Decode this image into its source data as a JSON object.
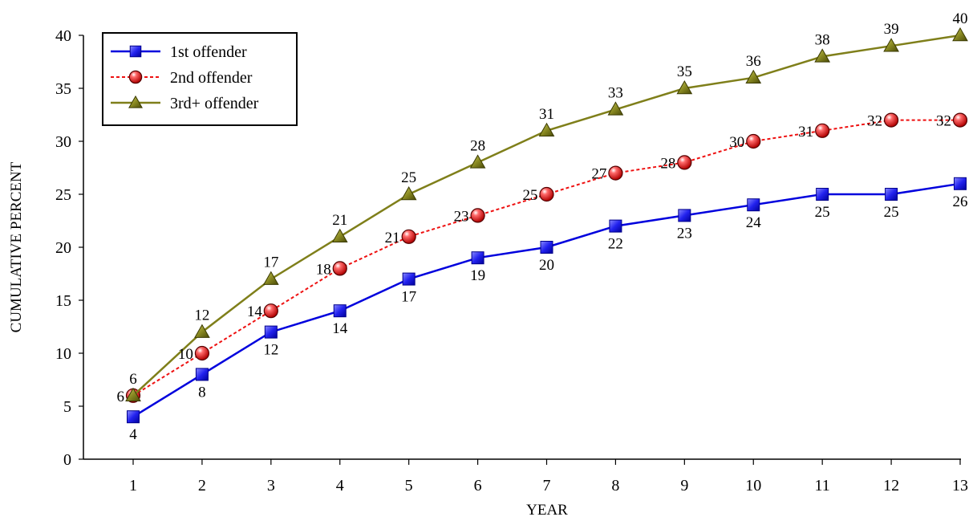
{
  "chart_data": {
    "type": "line",
    "xlabel": "YEAR",
    "ylabel": "CUMULATIVE PERCENT",
    "x": [
      1,
      2,
      3,
      4,
      5,
      6,
      7,
      8,
      9,
      10,
      11,
      12,
      13
    ],
    "xlim": [
      1,
      13
    ],
    "ylim": [
      0,
      40
    ],
    "y_ticks": [
      0,
      5,
      10,
      15,
      20,
      25,
      30,
      35,
      40
    ],
    "grid": false,
    "legend_position": "top-left",
    "series": [
      {
        "name": "1st offender",
        "values": [
          4,
          8,
          12,
          14,
          17,
          19,
          20,
          22,
          23,
          24,
          25,
          25,
          26
        ],
        "color": "#0000dd",
        "marker": "square",
        "line_style": "solid",
        "label_position": "below"
      },
      {
        "name": "2nd offender",
        "values": [
          6,
          10,
          14,
          18,
          21,
          23,
          25,
          27,
          28,
          30,
          31,
          32,
          32
        ],
        "color": "#ee1111",
        "marker": "circle",
        "line_style": "dotted",
        "label_position": "left"
      },
      {
        "name": "3rd+ offender",
        "values": [
          6,
          12,
          17,
          21,
          25,
          28,
          31,
          33,
          35,
          36,
          38,
          39,
          40
        ],
        "color": "#7f7f1a",
        "marker": "triangle",
        "line_style": "solid",
        "label_position": "above"
      }
    ]
  }
}
